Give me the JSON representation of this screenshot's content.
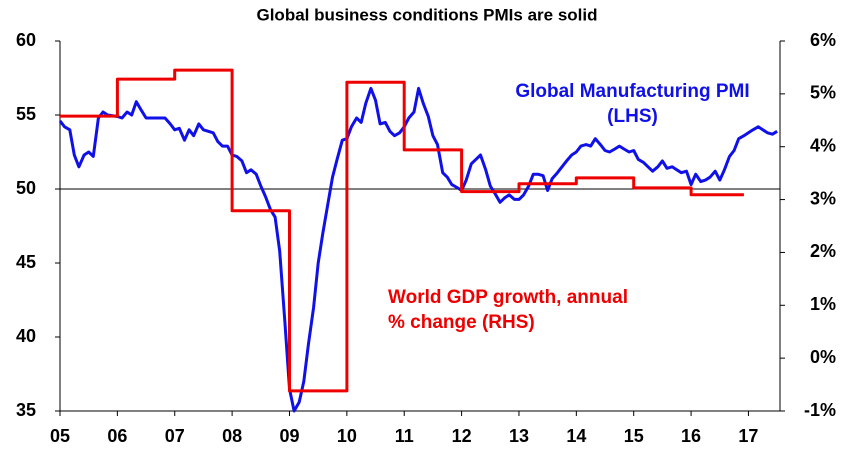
{
  "chart_data": {
    "type": "line",
    "title": "Global business conditions PMIs are solid",
    "xlim": [
      2005,
      2017.55
    ],
    "xticks": [
      {
        "value": 2005,
        "label": "05"
      },
      {
        "value": 2006,
        "label": "06"
      },
      {
        "value": 2007,
        "label": "07"
      },
      {
        "value": 2008,
        "label": "08"
      },
      {
        "value": 2009,
        "label": "09"
      },
      {
        "value": 2010,
        "label": "10"
      },
      {
        "value": 2011,
        "label": "11"
      },
      {
        "value": 2012,
        "label": "12"
      },
      {
        "value": 2013,
        "label": "13"
      },
      {
        "value": 2014,
        "label": "14"
      },
      {
        "value": 2015,
        "label": "15"
      },
      {
        "value": 2016,
        "label": "16"
      },
      {
        "value": 2017,
        "label": "17"
      }
    ],
    "ylim": [
      35,
      60
    ],
    "yticks": [
      35,
      40,
      45,
      50,
      55,
      60
    ],
    "y2lim": [
      -1,
      6
    ],
    "y2ticks": [
      {
        "value": -1,
        "label": "-1%"
      },
      {
        "value": 0,
        "label": "0%"
      },
      {
        "value": 1,
        "label": "1%"
      },
      {
        "value": 2,
        "label": "2%"
      },
      {
        "value": 3,
        "label": "3%"
      },
      {
        "value": 4,
        "label": "4%"
      },
      {
        "value": 5,
        "label": "5%"
      },
      {
        "value": 6,
        "label": "6%"
      }
    ],
    "reference_line": 50,
    "series": [
      {
        "name": "Global Manufacturing PMI (LHS)",
        "color": "#1010e8",
        "axis": "y",
        "x": [
          2005,
          2005.08,
          2005.17,
          2005.25,
          2005.33,
          2005.42,
          2005.5,
          2005.58,
          2005.67,
          2005.75,
          2005.83,
          2006,
          2006.08,
          2006.17,
          2006.25,
          2006.33,
          2006.42,
          2006.5,
          2006.67,
          2006.83,
          2006.92,
          2007,
          2007.08,
          2007.17,
          2007.25,
          2007.33,
          2007.42,
          2007.5,
          2007.67,
          2007.75,
          2007.83,
          2007.92,
          2008,
          2008.08,
          2008.17,
          2008.25,
          2008.33,
          2008.42,
          2008.5,
          2008.58,
          2008.67,
          2008.75,
          2008.83,
          2008.92,
          2009,
          2009.08,
          2009.17,
          2009.25,
          2009.33,
          2009.42,
          2009.5,
          2009.58,
          2009.67,
          2009.75,
          2009.83,
          2009.92,
          2010,
          2010.08,
          2010.17,
          2010.25,
          2010.33,
          2010.42,
          2010.5,
          2010.58,
          2010.67,
          2010.75,
          2010.83,
          2010.92,
          2011,
          2011.08,
          2011.17,
          2011.25,
          2011.33,
          2011.42,
          2011.5,
          2011.58,
          2011.67,
          2011.75,
          2011.83,
          2011.92,
          2012,
          2012.08,
          2012.17,
          2012.25,
          2012.33,
          2012.42,
          2012.5,
          2012.58,
          2012.67,
          2012.75,
          2012.83,
          2012.92,
          2013,
          2013.08,
          2013.17,
          2013.25,
          2013.33,
          2013.42,
          2013.5,
          2013.58,
          2013.67,
          2013.75,
          2013.83,
          2013.92,
          2014,
          2014.08,
          2014.17,
          2014.25,
          2014.33,
          2014.42,
          2014.5,
          2014.58,
          2014.67,
          2014.75,
          2014.83,
          2014.92,
          2015,
          2015.08,
          2015.17,
          2015.25,
          2015.33,
          2015.42,
          2015.5,
          2015.58,
          2015.67,
          2015.75,
          2015.83,
          2015.92,
          2016,
          2016.08,
          2016.17,
          2016.25,
          2016.33,
          2016.42,
          2016.5,
          2016.58,
          2016.67,
          2016.75,
          2016.83,
          2016.92,
          2017,
          2017.08,
          2017.17,
          2017.25,
          2017.33,
          2017.42,
          2017.5
        ],
        "values": [
          54.6,
          54.2,
          54.0,
          52.3,
          51.5,
          52.3,
          52.5,
          52.2,
          54.8,
          55.2,
          55.0,
          54.9,
          54.8,
          55.2,
          55.0,
          55.9,
          55.3,
          54.8,
          54.8,
          54.8,
          54.4,
          54.0,
          54.1,
          53.3,
          54.0,
          53.6,
          54.4,
          54.0,
          53.8,
          53.2,
          52.9,
          52.9,
          52.3,
          52.2,
          51.9,
          51.1,
          51.3,
          51.0,
          50.2,
          49.5,
          48.6,
          48.1,
          45.8,
          41.0,
          36.5,
          35.0,
          35.6,
          37.0,
          39.5,
          42.0,
          45.0,
          47.0,
          49.0,
          50.8,
          52.0,
          53.3,
          53.4,
          54.2,
          54.8,
          54.5,
          55.8,
          56.8,
          56.0,
          54.4,
          54.5,
          53.9,
          53.6,
          53.8,
          54.2,
          54.8,
          55.2,
          56.8,
          55.8,
          54.9,
          53.6,
          53.0,
          51.1,
          50.8,
          50.3,
          50.1,
          49.9,
          50.6,
          51.7,
          52.0,
          52.3,
          51.3,
          50.2,
          49.7,
          49.1,
          49.4,
          49.6,
          49.3,
          49.3,
          49.6,
          50.2,
          51.0,
          51.0,
          50.9,
          49.9,
          50.7,
          51.1,
          51.5,
          51.9,
          52.3,
          52.5,
          52.9,
          53.0,
          52.9,
          53.4,
          53.0,
          52.6,
          52.5,
          52.7,
          52.9,
          52.7,
          52.5,
          52.6,
          52.0,
          51.8,
          51.5,
          51.2,
          51.5,
          51.9,
          51.4,
          51.5,
          51.3,
          51.1,
          51.2,
          50.3,
          51.0,
          50.5,
          50.6,
          50.8,
          51.2,
          50.6,
          51.3,
          52.2,
          52.6,
          53.4,
          53.6,
          53.8,
          54.0,
          54.2,
          54.0,
          53.8,
          53.7,
          53.9
        ]
      },
      {
        "name": "World GDP growth, annual % change (RHS)",
        "color": "#ee0000",
        "axis": "y2",
        "x": [
          2005,
          2006,
          2006,
          2007,
          2007,
          2008,
          2008,
          2009,
          2009,
          2010,
          2010,
          2011,
          2011,
          2012,
          2012,
          2013,
          2013,
          2014,
          2014,
          2015,
          2015,
          2016,
          2016,
          2016.92
        ],
        "values": [
          4.58,
          4.58,
          5.28,
          5.28,
          5.45,
          5.45,
          2.79,
          2.79,
          -0.62,
          -0.62,
          5.22,
          5.22,
          3.94,
          3.94,
          3.15,
          3.15,
          3.3,
          3.3,
          3.41,
          3.41,
          3.22,
          3.22,
          3.09,
          3.09
        ]
      }
    ]
  }
}
